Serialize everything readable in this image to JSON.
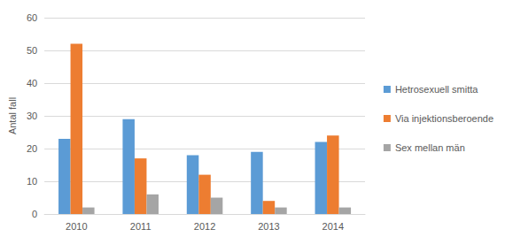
{
  "chart_data": {
    "type": "bar",
    "y_label": "Antal fall",
    "categories": [
      "2010",
      "2011",
      "2012",
      "2013",
      "2014"
    ],
    "series": [
      {
        "name": "Hetrosexuell smitta",
        "color": "#5b9bd5",
        "values": [
          23,
          29,
          18,
          19,
          22
        ]
      },
      {
        "name": "Via injektionsberoende",
        "color": "#ed7d31",
        "values": [
          52,
          17,
          12,
          4,
          24
        ]
      },
      {
        "name": "Sex mellan män",
        "color": "#a5a5a5",
        "values": [
          2,
          6,
          5,
          2,
          2
        ]
      }
    ],
    "ylim": [
      0,
      60
    ],
    "yticks": [
      0,
      10,
      20,
      30,
      40,
      50,
      60
    ],
    "grid": true,
    "legend": "right"
  }
}
